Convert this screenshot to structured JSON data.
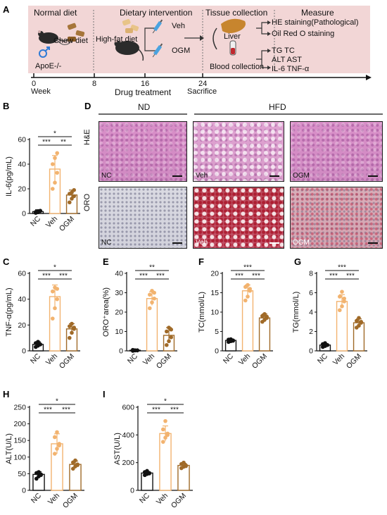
{
  "panel_letters": {
    "a": "A",
    "b": "B",
    "c": "C",
    "d": "D",
    "e": "E",
    "f": "F",
    "g": "G",
    "h": "H",
    "i": "I"
  },
  "schematic": {
    "phases": {
      "normal": "Normal diet",
      "intervention": "Dietary intervention",
      "tissue": "Tissue collection",
      "measure": "Measure"
    },
    "chow": "Chow diet",
    "model": "ApoE-/-",
    "hfd": "High-fat diet",
    "veh": "Veh",
    "ogm": "OGM",
    "liver": "Liver",
    "blood": "Blood collection",
    "measure_liver": [
      "HE staining(Pathological)",
      "Oil Red O staining"
    ],
    "measure_blood": [
      "TG  TC",
      "ALT AST",
      "IL-6 TNF-α"
    ],
    "timeline_ticks": [
      "0",
      "8",
      "16",
      "24"
    ],
    "timeline_labels": {
      "week": "Week",
      "drug": "Drug treatment",
      "sacrifice": "Sacrifice"
    }
  },
  "histology": {
    "nd": "ND",
    "hfd": "HFD",
    "row_he": "H&E",
    "row_oro": "ORO",
    "tags": [
      "NC",
      "Veh",
      "OGM"
    ]
  },
  "colors": {
    "nc": "#111111",
    "veh": "#f2b36f",
    "ogm": "#a06a28"
  },
  "chart_data": [
    {
      "id": "B",
      "type": "bar",
      "categories": [
        "NC",
        "Veh",
        "OGM"
      ],
      "values": [
        1.5,
        36,
        15
      ],
      "errors": [
        1.5,
        11,
        4
      ],
      "points": [
        [
          0.5,
          1,
          2,
          1.2,
          1.8,
          2.2
        ],
        [
          20,
          25,
          33,
          40,
          45,
          49
        ],
        [
          9,
          12,
          14,
          16,
          17,
          19
        ]
      ],
      "ylabel": "IL-6(pg/mL)",
      "ylim": [
        0,
        60
      ],
      "yticks": [
        0,
        20,
        40,
        60
      ],
      "sig": [
        {
          "a": 0,
          "b": 1,
          "t": "***"
        },
        {
          "a": 1,
          "b": 2,
          "t": "**"
        },
        {
          "a": 0,
          "b": 2,
          "t": "*"
        }
      ]
    },
    {
      "id": "C",
      "type": "bar",
      "categories": [
        "NC",
        "Veh",
        "OGM"
      ],
      "values": [
        5,
        42,
        17
      ],
      "errors": [
        2,
        9,
        4
      ],
      "points": [
        [
          3,
          4,
          5,
          6,
          7,
          5
        ],
        [
          25,
          33,
          40,
          46,
          49,
          48
        ],
        [
          10,
          14,
          17,
          19,
          21,
          18
        ]
      ],
      "ylabel": "TNF-α(pg/mL)",
      "ylim": [
        0,
        60
      ],
      "yticks": [
        0,
        20,
        40,
        60
      ],
      "sig": [
        {
          "a": 0,
          "b": 1,
          "t": "***"
        },
        {
          "a": 1,
          "b": 2,
          "t": "***"
        },
        {
          "a": 0,
          "b": 2,
          "t": "*"
        }
      ]
    },
    {
      "id": "E",
      "type": "bar",
      "categories": [
        "NC",
        "Veh",
        "OGM"
      ],
      "values": [
        0.3,
        27,
        8
      ],
      "errors": [
        0.3,
        3.5,
        4
      ],
      "points": [
        [
          0,
          0.2,
          0.3,
          0.5,
          0.3,
          0.2
        ],
        [
          22,
          25,
          27,
          29,
          31,
          30
        ],
        [
          3,
          5,
          7,
          10,
          12,
          11
        ]
      ],
      "ylabel": "ORO⁺area(%)",
      "ylim": [
        0,
        40
      ],
      "yticks": [
        0,
        10,
        20,
        30,
        40
      ],
      "sig": [
        {
          "a": 0,
          "b": 1,
          "t": "***"
        },
        {
          "a": 1,
          "b": 2,
          "t": "***"
        },
        {
          "a": 0,
          "b": 2,
          "t": "**"
        }
      ]
    },
    {
      "id": "F",
      "type": "bar",
      "categories": [
        "NC",
        "Veh",
        "OGM"
      ],
      "values": [
        2.7,
        15.5,
        8.5
      ],
      "errors": [
        0.3,
        1.5,
        1
      ],
      "points": [
        [
          2.3,
          2.5,
          2.7,
          2.9,
          3,
          2.6
        ],
        [
          13,
          14,
          15.5,
          16.5,
          17,
          16
        ],
        [
          7.5,
          8,
          8.5,
          9,
          9.5,
          8.8
        ]
      ],
      "ylabel": "TC(mmol/L)",
      "ylim": [
        0,
        20
      ],
      "yticks": [
        0,
        5,
        10,
        15,
        20
      ],
      "sig": [
        {
          "a": 0,
          "b": 1,
          "t": "***"
        },
        {
          "a": 1,
          "b": 2,
          "t": "***"
        },
        {
          "a": 0,
          "b": 2,
          "t": "***"
        }
      ]
    },
    {
      "id": "G",
      "type": "bar",
      "categories": [
        "NC",
        "Veh",
        "OGM"
      ],
      "values": [
        0.6,
        5.1,
        2.9
      ],
      "errors": [
        0.15,
        0.7,
        0.4
      ],
      "points": [
        [
          0.4,
          0.5,
          0.6,
          0.7,
          0.8,
          0.6
        ],
        [
          4.2,
          4.6,
          5.1,
          5.6,
          6.1,
          5.4
        ],
        [
          2.4,
          2.6,
          2.9,
          3.1,
          3.4,
          3.0
        ]
      ],
      "ylabel": "TG(mmol/L)",
      "ylim": [
        0,
        8
      ],
      "yticks": [
        0,
        2,
        4,
        6,
        8
      ],
      "sig": [
        {
          "a": 0,
          "b": 1,
          "t": "***"
        },
        {
          "a": 1,
          "b": 2,
          "t": "***"
        },
        {
          "a": 0,
          "b": 2,
          "t": "***"
        }
      ]
    },
    {
      "id": "H",
      "type": "bar",
      "categories": [
        "NC",
        "Veh",
        "OGM"
      ],
      "values": [
        48,
        140,
        78
      ],
      "errors": [
        8,
        30,
        10
      ],
      "points": [
        [
          35,
          42,
          48,
          52,
          55,
          46
        ],
        [
          110,
          125,
          140,
          160,
          175,
          135
        ],
        [
          65,
          72,
          78,
          84,
          90,
          76
        ]
      ],
      "ylabel": "ALT(U/L)",
      "ylim": [
        0,
        250
      ],
      "yticks": [
        0,
        50,
        100,
        150,
        200,
        250
      ],
      "sig": [
        {
          "a": 0,
          "b": 1,
          "t": "***"
        },
        {
          "a": 1,
          "b": 2,
          "t": "***"
        },
        {
          "a": 0,
          "b": 2,
          "t": "*"
        }
      ]
    },
    {
      "id": "I",
      "type": "bar",
      "categories": [
        "NC",
        "Veh",
        "OGM"
      ],
      "values": [
        125,
        410,
        180
      ],
      "errors": [
        10,
        55,
        15
      ],
      "points": [
        [
          110,
          118,
          125,
          132,
          140,
          122
        ],
        [
          350,
          380,
          410,
          440,
          500,
          400
        ],
        [
          160,
          170,
          180,
          190,
          200,
          175
        ]
      ],
      "ylabel": "AST(U/L)",
      "ylim": [
        0,
        600
      ],
      "yticks": [
        0,
        200,
        400,
        600
      ],
      "sig": [
        {
          "a": 0,
          "b": 1,
          "t": "***"
        },
        {
          "a": 1,
          "b": 2,
          "t": "***"
        },
        {
          "a": 0,
          "b": 2,
          "t": "*"
        }
      ]
    }
  ]
}
